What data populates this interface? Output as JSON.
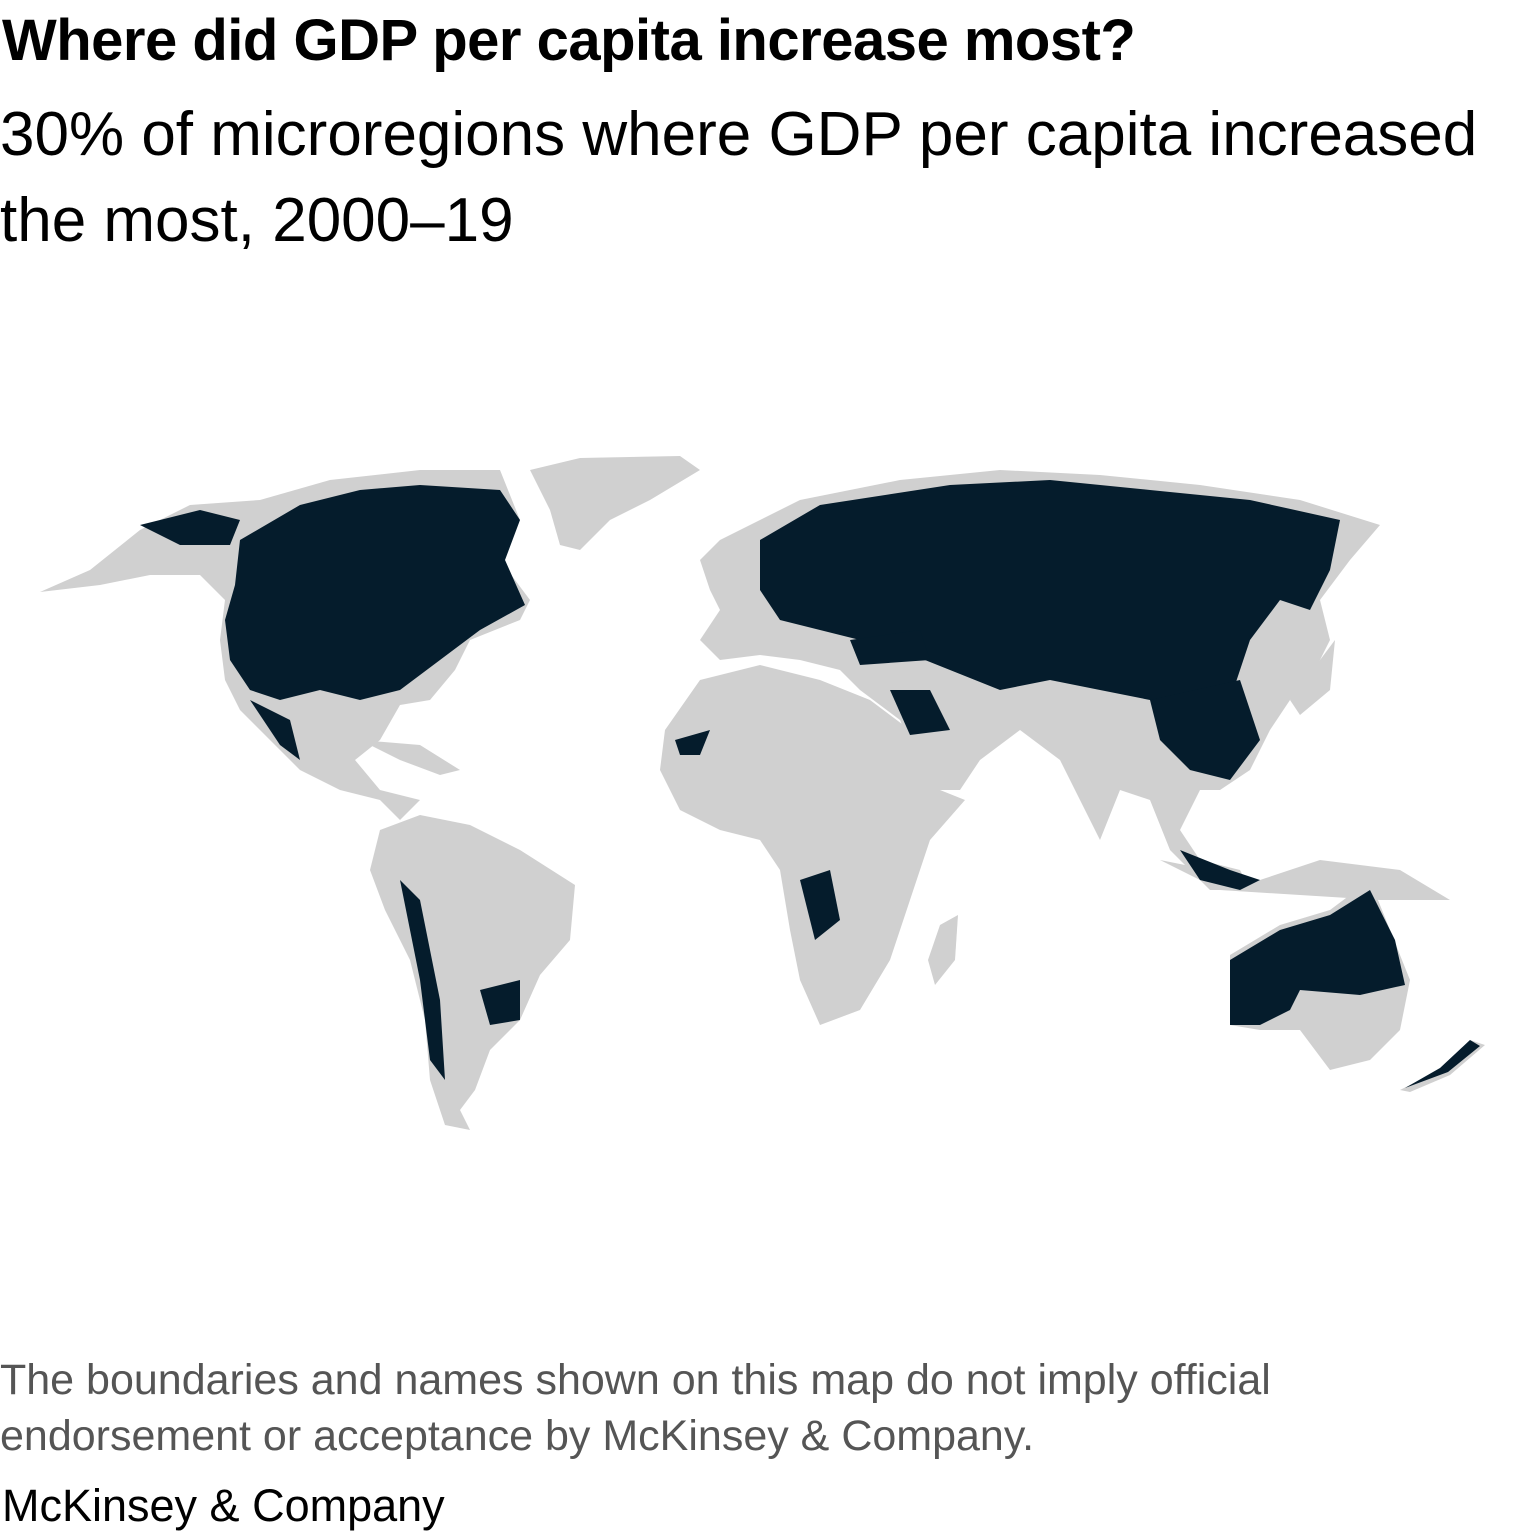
{
  "header": {
    "title": "Where did GDP per capita increase most?",
    "subtitle": "30% of microregions where GDP per capita increased the most, 2000–19"
  },
  "map": {
    "highlight_color": "#051C2C",
    "base_color": "#D0D0D0",
    "highlighted_regions_description": "Top 30% of microregions by GDP per capita increase"
  },
  "footer": {
    "disclaimer": "The boundaries and names shown on this map do not imply official endorsement or acceptance by McKinsey & Company.",
    "logo": "McKinsey & Company"
  }
}
